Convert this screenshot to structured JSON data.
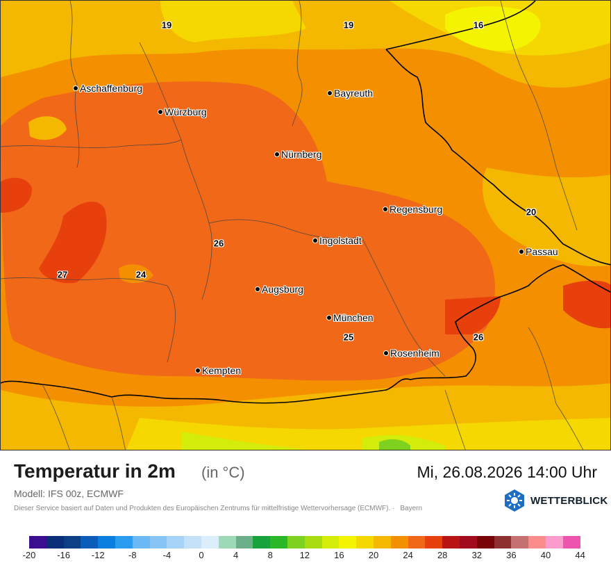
{
  "map": {
    "region": "Bayern",
    "cities": [
      {
        "name": "Aschaffenburg"
      },
      {
        "name": "Bayreuth"
      },
      {
        "name": "Würzburg"
      },
      {
        "name": "Nürnberg"
      },
      {
        "name": "Regensburg"
      },
      {
        "name": "Ingolstadt"
      },
      {
        "name": "Passau"
      },
      {
        "name": "Augsburg"
      },
      {
        "name": "München"
      },
      {
        "name": "Rosenheim"
      },
      {
        "name": "Kempten"
      }
    ],
    "isotherm_labels": [
      "19",
      "19",
      "16",
      "20",
      "26",
      "27",
      "24",
      "25",
      "26"
    ]
  },
  "footer": {
    "title": "Temperatur in 2m",
    "unit": "(in °C)",
    "datetime": "Mi, 26.08.2026 14:00 Uhr",
    "model": "Modell: IFS 00z, ECMWF",
    "credit": "Dieser Service basiert auf Daten und Produkten des Europäischen Zentrums für mittelfristige Wettervorhersage (ECMWF).",
    "credit_separator": "·",
    "region": "Bayern",
    "brand": "WETTERBLICK"
  },
  "legend": {
    "colors": [
      "#3a0f8f",
      "#0a2f78",
      "#0c3f86",
      "#0a5db8",
      "#0a7fe0",
      "#2b9cf0",
      "#6ab9f5",
      "#86c5f5",
      "#a5d4f8",
      "#c3e2fa",
      "#dcedfb",
      "#9ed9b8",
      "#6cb08a",
      "#18a43a",
      "#2ab82a",
      "#7fd11f",
      "#a8dc10",
      "#d4ec0a",
      "#f4f400",
      "#f4d800",
      "#f4b800",
      "#f49000",
      "#f06818",
      "#e8400c",
      "#b81414",
      "#a00c1c",
      "#780408",
      "#8c3030",
      "#c47070",
      "#fc8c8c",
      "#fc9ccc",
      "#ec54b0"
    ],
    "ticks": [
      "-20",
      "-16",
      "-12",
      "-8",
      "-4",
      "0",
      "4",
      "8",
      "12",
      "16",
      "20",
      "24",
      "28",
      "32",
      "36",
      "40",
      "44"
    ]
  }
}
